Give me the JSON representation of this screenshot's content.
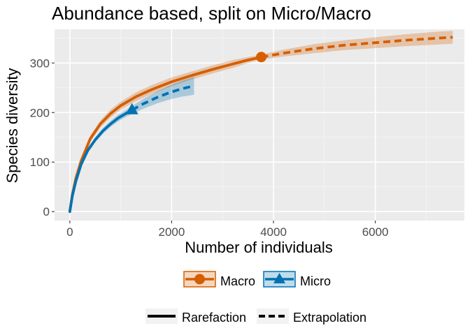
{
  "chart_data": {
    "type": "line",
    "title": "Abundance based, split on Micro/Macro",
    "xlabel": "Number of individuals",
    "ylabel": "Species diversity",
    "xlim": [
      -300,
      7750
    ],
    "ylim": [
      -18,
      368
    ],
    "x_ticks": [
      0,
      2000,
      4000,
      6000
    ],
    "x_tick_labels": [
      "0",
      "2000",
      "4000",
      "6000"
    ],
    "x_minor": [
      1000,
      3000,
      5000,
      7000
    ],
    "y_ticks": [
      0,
      100,
      200,
      300
    ],
    "y_tick_labels": [
      "0",
      "100",
      "200",
      "300"
    ],
    "y_minor": [
      50,
      150,
      250,
      350
    ],
    "grid": true,
    "series": [
      {
        "name": "Macro",
        "color": "#D55E00",
        "marker": "circle",
        "observed": {
          "x": 3760,
          "y": 312
        },
        "rarefaction": {
          "x": [
            0,
            50,
            120,
            220,
            400,
            600,
            800,
            1000,
            1300,
            1600,
            2000,
            2400,
            2800,
            3200,
            3500,
            3760
          ],
          "y": [
            0,
            35,
            68,
            102,
            147,
            177,
            198,
            214,
            232,
            246,
            262,
            275,
            287,
            298,
            306,
            312
          ],
          "lower": [
            0,
            33,
            65,
            98,
            141,
            170,
            190,
            206,
            223,
            237,
            253,
            267,
            279,
            290,
            300,
            307
          ],
          "upper": [
            0,
            37,
            71,
            106,
            153,
            184,
            206,
            222,
            241,
            255,
            271,
            283,
            295,
            306,
            312,
            317
          ]
        },
        "extrapolation": {
          "x": [
            3760,
            4200,
            4800,
            5400,
            6000,
            6600,
            7200,
            7520
          ],
          "y": [
            312,
            320,
            329,
            336,
            341,
            346,
            350,
            352
          ],
          "lower": [
            307,
            313,
            320,
            326,
            330,
            334,
            337,
            339
          ],
          "upper": [
            317,
            327,
            338,
            346,
            352,
            358,
            363,
            365
          ]
        }
      },
      {
        "name": "Micro",
        "color": "#0072B2",
        "marker": "triangle",
        "observed": {
          "x": 1220,
          "y": 205
        },
        "rarefaction": {
          "x": [
            0,
            50,
            120,
            220,
            350,
            500,
            650,
            800,
            950,
            1100,
            1220
          ],
          "y": [
            0,
            32,
            62,
            95,
            123,
            145,
            163,
            177,
            189,
            198,
            205
          ],
          "lower": [
            0,
            30,
            59,
            91,
            118,
            140,
            157,
            171,
            182,
            191,
            197
          ],
          "upper": [
            0,
            34,
            65,
            99,
            128,
            150,
            169,
            183,
            196,
            205,
            213
          ]
        },
        "extrapolation": {
          "x": [
            1220,
            1450,
            1700,
            1950,
            2200,
            2440
          ],
          "y": [
            205,
            218,
            230,
            240,
            248,
            254
          ],
          "lower": [
            197,
            208,
            218,
            226,
            232,
            236
          ],
          "upper": [
            213,
            228,
            242,
            254,
            264,
            272
          ]
        }
      }
    ],
    "legend": {
      "placement": "bottom",
      "color_items": [
        "Macro",
        "Micro"
      ],
      "linetype_items": [
        "Rarefaction",
        "Extrapolation"
      ]
    }
  }
}
